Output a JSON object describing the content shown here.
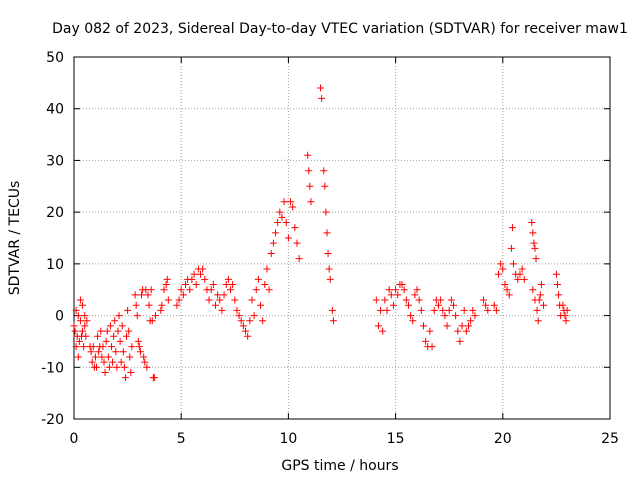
{
  "chart_data": {
    "type": "scatter",
    "title": "Day 082 of 2023, Sidereal Day-to-day VTEC variation (SDTVAR) for receiver maw1",
    "xlabel": "GPS time / hours",
    "ylabel": "SDTVAR / TECUs",
    "xlim": [
      0,
      25
    ],
    "ylim": [
      -20,
      50
    ],
    "x_ticks": [
      0,
      5,
      10,
      15,
      20,
      25
    ],
    "y_ticks": [
      -20,
      -10,
      0,
      10,
      20,
      30,
      40,
      50
    ],
    "grid": true,
    "marker": "+",
    "color": "#ff0000",
    "series": [
      {
        "name": "SDTVAR",
        "points": [
          [
            0.0,
            -2
          ],
          [
            0.05,
            -3
          ],
          [
            0.1,
            1
          ],
          [
            0.1,
            -6
          ],
          [
            0.15,
            -4
          ],
          [
            0.2,
            0
          ],
          [
            0.2,
            -8
          ],
          [
            0.25,
            -5
          ],
          [
            0.3,
            3
          ],
          [
            0.3,
            -1
          ],
          [
            0.35,
            -4
          ],
          [
            0.4,
            2
          ],
          [
            0.4,
            -3
          ],
          [
            0.45,
            -6
          ],
          [
            0.5,
            0
          ],
          [
            0.5,
            -2
          ],
          [
            0.55,
            -4
          ],
          [
            0.6,
            -1
          ],
          [
            0.75,
            -6
          ],
          [
            0.8,
            -7
          ],
          [
            0.85,
            -9
          ],
          [
            0.9,
            -6
          ],
          [
            0.95,
            -10
          ],
          [
            1.0,
            -8
          ],
          [
            1.05,
            -10
          ],
          [
            1.1,
            -4
          ],
          [
            1.15,
            -7
          ],
          [
            1.2,
            -6
          ],
          [
            1.25,
            -3
          ],
          [
            1.3,
            -8
          ],
          [
            1.35,
            -6
          ],
          [
            1.4,
            -9
          ],
          [
            1.45,
            -11
          ],
          [
            1.5,
            -5
          ],
          [
            1.55,
            -3
          ],
          [
            1.6,
            -8
          ],
          [
            1.65,
            -10
          ],
          [
            1.7,
            -2
          ],
          [
            1.75,
            -6
          ],
          [
            1.8,
            -9
          ],
          [
            1.85,
            -4
          ],
          [
            1.9,
            -1
          ],
          [
            1.95,
            -7
          ],
          [
            2.0,
            -10
          ],
          [
            2.05,
            -3
          ],
          [
            2.1,
            0
          ],
          [
            2.15,
            -5
          ],
          [
            2.2,
            -9
          ],
          [
            2.25,
            -2
          ],
          [
            2.3,
            -7
          ],
          [
            2.35,
            -10
          ],
          [
            2.4,
            -12
          ],
          [
            2.45,
            -4
          ],
          [
            2.5,
            1
          ],
          [
            2.55,
            -3
          ],
          [
            2.6,
            -8
          ],
          [
            2.65,
            -11
          ],
          [
            2.7,
            -6
          ],
          [
            2.85,
            4
          ],
          [
            2.9,
            2
          ],
          [
            2.95,
            0
          ],
          [
            3.0,
            -5
          ],
          [
            3.05,
            -6
          ],
          [
            3.1,
            -7
          ],
          [
            3.15,
            4
          ],
          [
            3.2,
            5
          ],
          [
            3.25,
            -8
          ],
          [
            3.3,
            -9
          ],
          [
            3.35,
            5
          ],
          [
            3.4,
            -10
          ],
          [
            3.45,
            4
          ],
          [
            3.5,
            2
          ],
          [
            3.55,
            -1
          ],
          [
            3.6,
            5
          ],
          [
            3.65,
            -1
          ],
          [
            3.7,
            -12
          ],
          [
            3.75,
            -12
          ],
          [
            3.8,
            0
          ],
          [
            4.05,
            1
          ],
          [
            4.1,
            2
          ],
          [
            4.2,
            5
          ],
          [
            4.3,
            6
          ],
          [
            4.35,
            7
          ],
          [
            4.4,
            3
          ],
          [
            4.8,
            2
          ],
          [
            4.9,
            3
          ],
          [
            5.0,
            5
          ],
          [
            5.1,
            4
          ],
          [
            5.2,
            6
          ],
          [
            5.3,
            7
          ],
          [
            5.4,
            5
          ],
          [
            5.5,
            7
          ],
          [
            5.6,
            8
          ],
          [
            5.7,
            6
          ],
          [
            5.8,
            9
          ],
          [
            5.9,
            8
          ],
          [
            6.0,
            9
          ],
          [
            6.1,
            7
          ],
          [
            6.2,
            5
          ],
          [
            6.3,
            3
          ],
          [
            6.4,
            5
          ],
          [
            6.5,
            6
          ],
          [
            6.6,
            2
          ],
          [
            6.7,
            4
          ],
          [
            6.8,
            3
          ],
          [
            6.9,
            1
          ],
          [
            7.0,
            4
          ],
          [
            7.1,
            6
          ],
          [
            7.2,
            7
          ],
          [
            7.3,
            5
          ],
          [
            7.4,
            6
          ],
          [
            7.5,
            3
          ],
          [
            7.6,
            1
          ],
          [
            7.7,
            0
          ],
          [
            7.8,
            -1
          ],
          [
            7.9,
            -2
          ],
          [
            8.0,
            -3
          ],
          [
            8.1,
            -4
          ],
          [
            8.2,
            -1
          ],
          [
            8.3,
            3
          ],
          [
            8.4,
            0
          ],
          [
            8.5,
            5
          ],
          [
            8.6,
            7
          ],
          [
            8.7,
            2
          ],
          [
            8.8,
            -1
          ],
          [
            8.9,
            6
          ],
          [
            9.0,
            9
          ],
          [
            9.1,
            5
          ],
          [
            9.2,
            12
          ],
          [
            9.3,
            14
          ],
          [
            9.4,
            16
          ],
          [
            9.5,
            18
          ],
          [
            9.6,
            20
          ],
          [
            9.7,
            19
          ],
          [
            9.8,
            22
          ],
          [
            9.9,
            18
          ],
          [
            10.0,
            15
          ],
          [
            10.1,
            22
          ],
          [
            10.2,
            21
          ],
          [
            10.3,
            17
          ],
          [
            10.4,
            14
          ],
          [
            10.5,
            11
          ],
          [
            10.9,
            31
          ],
          [
            10.95,
            28
          ],
          [
            11.0,
            25
          ],
          [
            11.05,
            22
          ],
          [
            11.5,
            44
          ],
          [
            11.55,
            42
          ],
          [
            11.65,
            28
          ],
          [
            11.7,
            25
          ],
          [
            11.75,
            20
          ],
          [
            11.8,
            16
          ],
          [
            11.85,
            12
          ],
          [
            11.9,
            9
          ],
          [
            11.95,
            7
          ],
          [
            12.05,
            1
          ],
          [
            12.1,
            -1
          ],
          [
            14.1,
            3
          ],
          [
            14.2,
            -2
          ],
          [
            14.3,
            1
          ],
          [
            14.4,
            -3
          ],
          [
            14.5,
            3
          ],
          [
            14.6,
            1
          ],
          [
            14.7,
            5
          ],
          [
            14.8,
            4
          ],
          [
            14.9,
            2
          ],
          [
            15.0,
            5
          ],
          [
            15.1,
            4
          ],
          [
            15.2,
            6
          ],
          [
            15.3,
            6
          ],
          [
            15.4,
            5
          ],
          [
            15.5,
            3
          ],
          [
            15.6,
            2
          ],
          [
            15.7,
            0
          ],
          [
            15.8,
            -1
          ],
          [
            15.9,
            4
          ],
          [
            16.0,
            5
          ],
          [
            16.1,
            3
          ],
          [
            16.2,
            1
          ],
          [
            16.3,
            -2
          ],
          [
            16.4,
            -5
          ],
          [
            16.5,
            -6
          ],
          [
            16.6,
            -3
          ],
          [
            16.7,
            -6
          ],
          [
            16.8,
            1
          ],
          [
            16.9,
            3
          ],
          [
            17.0,
            2
          ],
          [
            17.1,
            3
          ],
          [
            17.2,
            1
          ],
          [
            17.3,
            0
          ],
          [
            17.4,
            -2
          ],
          [
            17.5,
            1
          ],
          [
            17.6,
            3
          ],
          [
            17.7,
            2
          ],
          [
            17.8,
            0
          ],
          [
            17.9,
            -3
          ],
          [
            18.0,
            -5
          ],
          [
            18.1,
            -2
          ],
          [
            18.2,
            1
          ],
          [
            18.3,
            -3
          ],
          [
            18.4,
            -2
          ],
          [
            18.5,
            -1
          ],
          [
            18.6,
            1
          ],
          [
            18.7,
            0
          ],
          [
            19.1,
            3
          ],
          [
            19.2,
            2
          ],
          [
            19.3,
            1
          ],
          [
            19.6,
            2
          ],
          [
            19.7,
            1
          ],
          [
            19.8,
            8
          ],
          [
            19.9,
            10
          ],
          [
            20.0,
            9
          ],
          [
            20.1,
            6
          ],
          [
            20.2,
            5
          ],
          [
            20.3,
            4
          ],
          [
            20.4,
            13
          ],
          [
            20.45,
            17
          ],
          [
            20.5,
            10
          ],
          [
            20.6,
            8
          ],
          [
            20.7,
            7
          ],
          [
            20.8,
            8
          ],
          [
            20.9,
            9
          ],
          [
            21.0,
            7
          ],
          [
            21.35,
            18
          ],
          [
            21.4,
            16
          ],
          [
            21.45,
            14
          ],
          [
            21.5,
            13
          ],
          [
            21.55,
            11
          ],
          [
            21.4,
            5
          ],
          [
            21.5,
            3
          ],
          [
            21.6,
            1
          ],
          [
            21.65,
            -1
          ],
          [
            21.7,
            3
          ],
          [
            21.75,
            4
          ],
          [
            21.8,
            6
          ],
          [
            21.9,
            2
          ],
          [
            22.5,
            8
          ],
          [
            22.55,
            6
          ],
          [
            22.6,
            4
          ],
          [
            22.65,
            2
          ],
          [
            22.7,
            0
          ],
          [
            22.8,
            2
          ],
          [
            22.85,
            1
          ],
          [
            22.9,
            0
          ],
          [
            22.95,
            -1
          ],
          [
            23.0,
            1
          ]
        ]
      }
    ]
  }
}
